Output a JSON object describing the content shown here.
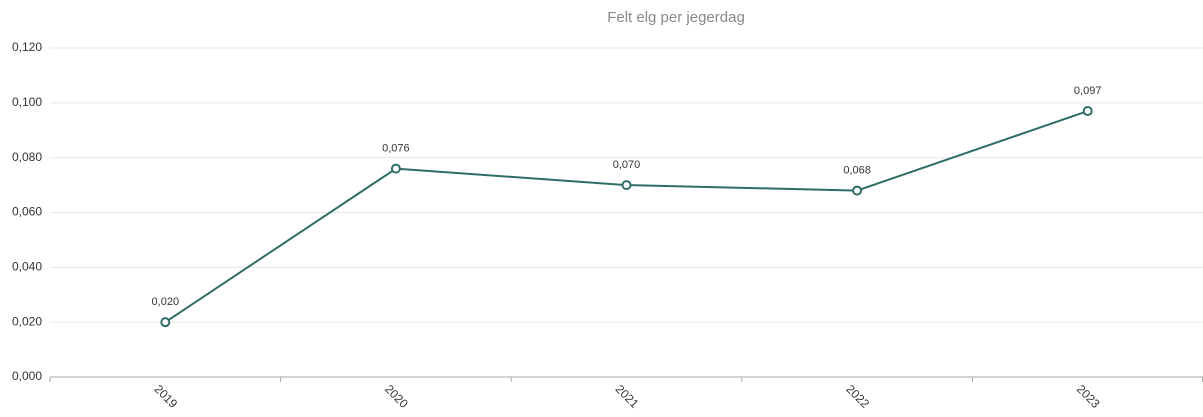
{
  "chart_data": {
    "type": "line",
    "title": "Felt elg per jegerdag",
    "categories": [
      "2019",
      "2020",
      "2021",
      "2022",
      "2023"
    ],
    "series": [
      {
        "name": "Felt elg per jegerdag",
        "color": "#2f6e66",
        "values": [
          0.02,
          0.076,
          0.07,
          0.068,
          0.097
        ],
        "value_labels": [
          "0,020",
          "0,076",
          "0,070",
          "0,068",
          "0,097"
        ]
      }
    ],
    "ylim": [
      0,
      0.12
    ],
    "yticks": [
      {
        "value": 0,
        "label": "0,000"
      },
      {
        "value": 0.02,
        "label": "0,020"
      },
      {
        "value": 0.04,
        "label": "0,040"
      },
      {
        "value": 0.06,
        "label": "0,060"
      },
      {
        "value": 0.08,
        "label": "0,080"
      },
      {
        "value": 0.1,
        "label": "0,100"
      },
      {
        "value": 0.12,
        "label": "0,120"
      }
    ],
    "grid": true
  }
}
